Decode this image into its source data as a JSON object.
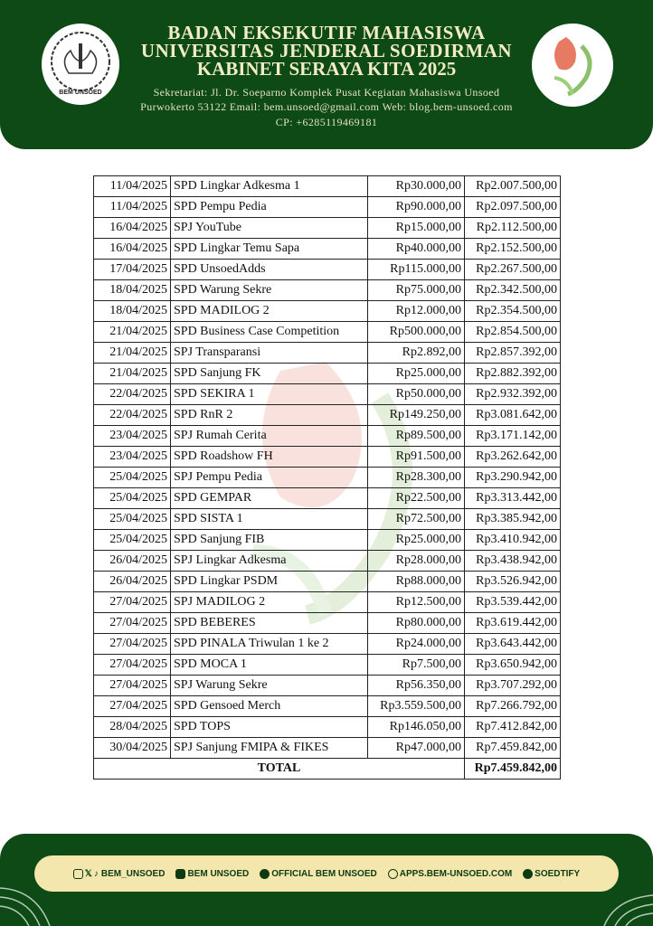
{
  "header": {
    "title_line1": "BADAN EKSEKUTIF MAHASISWA",
    "title_line2": "UNIVERSITAS JENDERAL SOEDIRMAN",
    "title_line3": "KABINET SERAYA KITA 2025",
    "address_line1": "Sekretariat: Jl. Dr. Soeparno Komplek Pusat Kegiatan Mahasiswa Unsoed",
    "address_line2": "Purwokerto 53122 Email: bem.unsoed@gmail.com Web: blog.bem-unsoed.com",
    "address_line3": "CP: +6285119469181",
    "left_logo_text": "BEM UNSOED"
  },
  "table": {
    "rows": [
      [
        "11/04/2025",
        "SPD Lingkar Adkesma 1",
        "Rp30.000,00",
        "Rp2.007.500,00"
      ],
      [
        "11/04/2025",
        "SPD Pempu Pedia",
        "Rp90.000,00",
        "Rp2.097.500,00"
      ],
      [
        "16/04/2025",
        "SPJ YouTube",
        "Rp15.000,00",
        "Rp2.112.500,00"
      ],
      [
        "16/04/2025",
        "SPD Lingkar Temu Sapa",
        "Rp40.000,00",
        "Rp2.152.500,00"
      ],
      [
        "17/04/2025",
        "SPD UnsoedAdds",
        "Rp115.000,00",
        "Rp2.267.500,00"
      ],
      [
        "18/04/2025",
        "SPD Warung Sekre",
        "Rp75.000,00",
        "Rp2.342.500,00"
      ],
      [
        "18/04/2025",
        "SPD MADILOG 2",
        "Rp12.000,00",
        "Rp2.354.500,00"
      ],
      [
        "21/04/2025",
        "SPD Business Case Competition",
        "Rp500.000,00",
        "Rp2.854.500,00"
      ],
      [
        "21/04/2025",
        "SPJ Transparansi",
        "Rp2.892,00",
        "Rp2.857.392,00"
      ],
      [
        "21/04/2025",
        "SPD Sanjung FK",
        "Rp25.000,00",
        "Rp2.882.392,00"
      ],
      [
        "22/04/2025",
        "SPD SEKIRA 1",
        "Rp50.000,00",
        "Rp2.932.392,00"
      ],
      [
        "22/04/2025",
        "SPD RnR 2",
        "Rp149.250,00",
        "Rp3.081.642,00"
      ],
      [
        "23/04/2025",
        "SPJ Rumah Cerita",
        "Rp89.500,00",
        "Rp3.171.142,00"
      ],
      [
        "23/04/2025",
        "SPD Roadshow FH",
        "Rp91.500,00",
        "Rp3.262.642,00"
      ],
      [
        "25/04/2025",
        "SPJ Pempu Pedia",
        "Rp28.300,00",
        "Rp3.290.942,00"
      ],
      [
        "25/04/2025",
        "SPD GEMPAR",
        "Rp22.500,00",
        "Rp3.313.442,00"
      ],
      [
        "25/04/2025",
        "SPD SISTA 1",
        "Rp72.500,00",
        "Rp3.385.942,00"
      ],
      [
        "25/04/2025",
        "SPD Sanjung FIB",
        "Rp25.000,00",
        "Rp3.410.942,00"
      ],
      [
        "26/04/2025",
        "SPJ Lingkar Adkesma",
        "Rp28.000,00",
        "Rp3.438.942,00"
      ],
      [
        "26/04/2025",
        "SPD Lingkar PSDM",
        "Rp88.000,00",
        "Rp3.526.942,00"
      ],
      [
        "27/04/2025",
        "SPJ MADILOG 2",
        "Rp12.500,00",
        "Rp3.539.442,00"
      ],
      [
        "27/04/2025",
        "SPD BEBERES",
        "Rp80.000,00",
        "Rp3.619.442,00"
      ],
      [
        "27/04/2025",
        "SPD PINALA Triwulan 1 ke 2",
        "Rp24.000,00",
        "Rp3.643.442,00"
      ],
      [
        "27/04/2025",
        "SPD MOCA 1",
        "Rp7.500,00",
        "Rp3.650.942,00"
      ],
      [
        "27/04/2025",
        "SPJ Warung Sekre",
        "Rp56.350,00",
        "Rp3.707.292,00"
      ],
      [
        "27/04/2025",
        "SPD Gensoed Merch",
        "Rp3.559.500,00",
        "Rp7.266.792,00"
      ],
      [
        "28/04/2025",
        "SPD TOPS",
        "Rp146.050,00",
        "Rp7.412.842,00"
      ],
      [
        "30/04/2025",
        "SPJ Sanjung FMIPA & FIKES",
        "Rp47.000,00",
        "Rp7.459.842,00"
      ]
    ],
    "total_label": "TOTAL",
    "total_value": "Rp7.459.842,00"
  },
  "footer": {
    "social_handle": "BEM_UNSOED",
    "youtube": "BEM UNSOED",
    "podcast": "OFFICIAL BEM UNSOED",
    "website": "APPS.BEM-UNSOED.COM",
    "spotify": "SOEDTIFY"
  },
  "colors": {
    "brand_green": "#0d4a16",
    "pill_cream": "#f4e7ae",
    "title_cream": "#f3ecc5"
  }
}
